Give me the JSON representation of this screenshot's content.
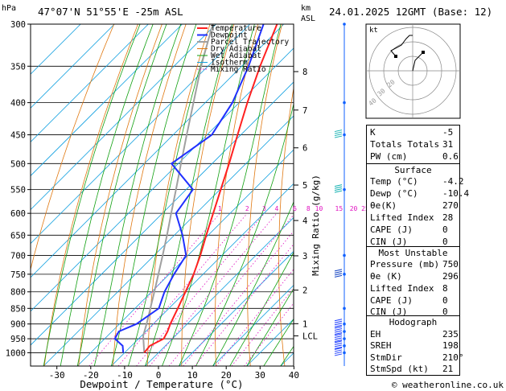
{
  "header": {
    "location": "47°07'N  51°55'E  -25m  ASL",
    "datetime": "24.01.2025  12GMT  (Base: 12)",
    "hpa_label": "hPa",
    "km_label": "km",
    "asl_label": "ASL",
    "credit": "© weatheronline.co.uk"
  },
  "chart_data": {
    "type": "skew-t",
    "xlabel": "Dewpoint / Temperature (°C)",
    "ylabel_right": "Mixing Ratio (g/kg)",
    "pressure_ticks": [
      300,
      350,
      400,
      450,
      500,
      550,
      600,
      650,
      700,
      750,
      800,
      850,
      900,
      950,
      1000
    ],
    "temp_ticks": [
      -30,
      -20,
      -10,
      0,
      10,
      20,
      30,
      40
    ],
    "km_ticks": [
      {
        "label": "8",
        "p": 357
      },
      {
        "label": "7",
        "p": 411
      },
      {
        "label": "6",
        "p": 472
      },
      {
        "label": "5",
        "p": 541
      },
      {
        "label": "4",
        "p": 616
      },
      {
        "label": "3",
        "p": 701
      },
      {
        "label": "2",
        "p": 795
      },
      {
        "label": "1",
        "p": 899
      },
      {
        "label": "LCL",
        "p": 940
      }
    ],
    "mixing_ratio_labels": [
      "1",
      "2",
      "3",
      "4",
      "6",
      "8",
      "10",
      "15",
      "20",
      "25"
    ],
    "legend": [
      "Temperature",
      "Dewpoint",
      "Parcel Trajectory",
      "Dry Adiabat",
      "Wet Adiabat",
      "Isotherm",
      "Mixing Ratio"
    ],
    "colors": {
      "temperature": "#ff2020",
      "dewpoint": "#2030ff",
      "parcel": "#a0a0a0",
      "dry_adiabat": "#e07810",
      "wet_adiabat": "#10a010",
      "isotherm": "#10a0e0",
      "mixing_ratio": "#e010c0"
    },
    "temperature": [
      {
        "p": 1000,
        "t": -4.2
      },
      {
        "p": 975,
        "t": -4.6
      },
      {
        "p": 950,
        "t": -2.6
      },
      {
        "p": 925,
        "t": -3.6
      },
      {
        "p": 900,
        "t": -5.0
      },
      {
        "p": 850,
        "t": -7.4
      },
      {
        "p": 800,
        "t": -10.0
      },
      {
        "p": 750,
        "t": -12.8
      },
      {
        "p": 700,
        "t": -16.4
      },
      {
        "p": 650,
        "t": -20.6
      },
      {
        "p": 600,
        "t": -25.0
      },
      {
        "p": 550,
        "t": -29.8
      },
      {
        "p": 500,
        "t": -35.0
      },
      {
        "p": 450,
        "t": -41.0
      },
      {
        "p": 400,
        "t": -47.6
      },
      {
        "p": 350,
        "t": -54.6
      },
      {
        "p": 300,
        "t": -62.0
      }
    ],
    "dewpoint": [
      {
        "p": 1000,
        "t": -10.4
      },
      {
        "p": 975,
        "t": -12.6
      },
      {
        "p": 950,
        "t": -17.0
      },
      {
        "p": 925,
        "t": -18.0
      },
      {
        "p": 900,
        "t": -15.0
      },
      {
        "p": 850,
        "t": -13.0
      },
      {
        "p": 800,
        "t": -16.2
      },
      {
        "p": 750,
        "t": -18.6
      },
      {
        "p": 700,
        "t": -20.6
      },
      {
        "p": 650,
        "t": -27.6
      },
      {
        "p": 600,
        "t": -36.0
      },
      {
        "p": 550,
        "t": -38.0
      },
      {
        "p": 500,
        "t": -52.0
      },
      {
        "p": 450,
        "t": -48.6
      },
      {
        "p": 400,
        "t": -52.0
      },
      {
        "p": 350,
        "t": -58.0
      },
      {
        "p": 300,
        "t": -66.0
      }
    ],
    "parcel": [
      {
        "p": 1000,
        "t": -4.2
      },
      {
        "p": 940,
        "t": -9.5
      },
      {
        "p": 900,
        "t": -12.0
      },
      {
        "p": 850,
        "t": -15.5
      },
      {
        "p": 800,
        "t": -19.2
      },
      {
        "p": 750,
        "t": -23.2
      },
      {
        "p": 700,
        "t": -27.5
      },
      {
        "p": 650,
        "t": -32.2
      },
      {
        "p": 600,
        "t": -37.4
      },
      {
        "p": 550,
        "t": -43.0
      },
      {
        "p": 500,
        "t": -49.2
      },
      {
        "p": 450,
        "t": -56.0
      },
      {
        "p": 400,
        "t": -63.5
      },
      {
        "p": 350,
        "t": -72.0
      },
      {
        "p": 300,
        "t": -81.0
      }
    ]
  },
  "hodograph": {
    "label": "kt",
    "rings": [
      "20",
      "30",
      "40"
    ]
  },
  "indices": [
    {
      "label": "K",
      "value": "-5"
    },
    {
      "label": "Totals Totals",
      "value": "31"
    },
    {
      "label": "PW (cm)",
      "value": "0.6"
    }
  ],
  "surface": {
    "title": "Surface",
    "rows": [
      {
        "label": "Temp (°C)",
        "value": "-4.2"
      },
      {
        "label": "Dewp (°C)",
        "value": "-10.4"
      },
      {
        "label": "θe(K)",
        "value": "270"
      },
      {
        "label": "Lifted Index",
        "value": "28"
      },
      {
        "label": "CAPE (J)",
        "value": "0"
      },
      {
        "label": "CIN (J)",
        "value": "0"
      }
    ]
  },
  "most_unstable": {
    "title": "Most Unstable",
    "rows": [
      {
        "label": "Pressure (mb)",
        "value": "750"
      },
      {
        "label": "θe (K)",
        "value": "296"
      },
      {
        "label": "Lifted Index",
        "value": "8"
      },
      {
        "label": "CAPE (J)",
        "value": "0"
      },
      {
        "label": "CIN (J)",
        "value": "0"
      }
    ]
  },
  "hodograph_table": {
    "title": "Hodograph",
    "rows": [
      {
        "label": "EH",
        "value": "235"
      },
      {
        "label": "SREH",
        "value": "198"
      },
      {
        "label": "StmDir",
        "value": "210°"
      },
      {
        "label": "StmSpd (kt)",
        "value": "21"
      }
    ]
  }
}
